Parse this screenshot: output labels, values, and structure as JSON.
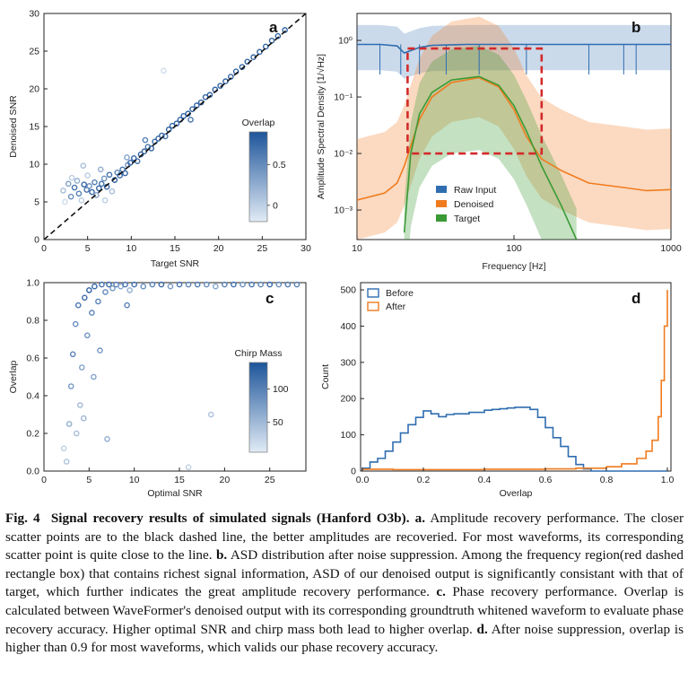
{
  "caption": {
    "fig_label": "Fig. 4",
    "title": "Signal recovery results of simulated signals (Hanford O3b).",
    "a_label": "a.",
    "a_text": "Amplitude recovery performance. The closer scatter points are to the black dashed line, the better amplitudes are recoveried. For most waveforms, its corresponding scatter point is quite close to the line.",
    "b_label": "b.",
    "b_text": "ASD distribution after noise suppression. Among the frequency region(red dashed rectangle box) that contains richest signal information, ASD of our denoised output is significantly consistant with that of target, which further indicates the great amplitude recovery performance.",
    "c_label": "c.",
    "c_text": "Phase recovery performance. Overlap is calculated between WaveFormer's denoised output with its corresponding groundtruth whitened waveform to evaluate phase recovery accuracy. Higher optimal SNR and chirp mass both lead to higher overlap.",
    "d_label": "d.",
    "d_text": "After noise suppression, overlap is higher than 0.9 for most waveforms, which valids our phase recovery accuracy."
  },
  "chart_data": [
    {
      "panel": "a",
      "type": "scatter",
      "title": "",
      "xlabel": "Target SNR",
      "ylabel": "Denoised SNR",
      "xlim": [
        0,
        30
      ],
      "ylim": [
        0,
        30
      ],
      "xticks": [
        0,
        5,
        10,
        15,
        20,
        25,
        30
      ],
      "yticks": [
        0,
        5,
        10,
        15,
        20,
        25,
        30
      ],
      "reference_line": "y = x (black dashed)",
      "colorbar": {
        "label": "Overlap",
        "ticks": [
          0.0,
          0.5
        ],
        "range": [
          -0.2,
          0.9
        ]
      },
      "points": [
        [
          2.2,
          6.5,
          0.3
        ],
        [
          2.8,
          7.4,
          0.5
        ],
        [
          3.1,
          5.7,
          0.6
        ],
        [
          3.5,
          6.9,
          0.8
        ],
        [
          3.8,
          7.8,
          0.4
        ],
        [
          4.0,
          6.1,
          0.7
        ],
        [
          4.3,
          5.2,
          0.2
        ],
        [
          4.6,
          7.3,
          0.9
        ],
        [
          4.9,
          6.6,
          0.8
        ],
        [
          5.2,
          7.1,
          0.6
        ],
        [
          5.5,
          6.3,
          0.9
        ],
        [
          5.8,
          7.6,
          0.7
        ],
        [
          6.0,
          5.9,
          0.5
        ],
        [
          6.3,
          6.8,
          0.9
        ],
        [
          6.6,
          7.4,
          0.8
        ],
        [
          6.9,
          8.1,
          0.6
        ],
        [
          7.2,
          7.0,
          0.9
        ],
        [
          7.5,
          8.6,
          0.8
        ],
        [
          7.8,
          6.4,
          0.3
        ],
        [
          8.1,
          7.9,
          0.9
        ],
        [
          8.4,
          8.9,
          0.7
        ],
        [
          8.7,
          8.5,
          0.9
        ],
        [
          9.0,
          9.3,
          0.8
        ],
        [
          9.3,
          8.8,
          0.9
        ],
        [
          9.6,
          9.9,
          0.6
        ],
        [
          9.9,
          10.2,
          0.9
        ],
        [
          10.3,
          10.8,
          0.9
        ],
        [
          10.7,
          10.4,
          0.8
        ],
        [
          11.1,
          11.3,
          0.9
        ],
        [
          11.5,
          11.7,
          0.9
        ],
        [
          11.9,
          12.3,
          0.8
        ],
        [
          12.3,
          12.1,
          0.9
        ],
        [
          12.7,
          13.0,
          0.9
        ],
        [
          13.1,
          13.4,
          0.9
        ],
        [
          13.5,
          13.8,
          0.9
        ],
        [
          13.9,
          13.7,
          0.8
        ],
        [
          14.3,
          14.6,
          0.9
        ],
        [
          14.7,
          15.1,
          0.9
        ],
        [
          15.2,
          15.4,
          0.9
        ],
        [
          15.6,
          15.9,
          0.9
        ],
        [
          16.0,
          16.4,
          0.9
        ],
        [
          16.5,
          16.7,
          0.9
        ],
        [
          17.0,
          17.3,
          0.9
        ],
        [
          17.5,
          17.8,
          0.9
        ],
        [
          18.0,
          18.2,
          0.9
        ],
        [
          18.5,
          18.9,
          0.9
        ],
        [
          19.0,
          19.2,
          0.9
        ],
        [
          19.6,
          19.9,
          0.9
        ],
        [
          20.2,
          20.4,
          0.9
        ],
        [
          20.8,
          21.0,
          0.9
        ],
        [
          21.4,
          21.6,
          0.9
        ],
        [
          22.0,
          22.3,
          0.9
        ],
        [
          22.7,
          22.9,
          0.9
        ],
        [
          23.3,
          23.6,
          0.9
        ],
        [
          24.0,
          24.2,
          0.9
        ],
        [
          24.7,
          24.9,
          0.9
        ],
        [
          25.4,
          25.6,
          0.9
        ],
        [
          26.1,
          26.4,
          0.9
        ],
        [
          26.8,
          27.0,
          0.9
        ],
        [
          27.6,
          27.8,
          0.9
        ],
        [
          13.7,
          22.4,
          0.1
        ],
        [
          4.5,
          9.8,
          0.3
        ],
        [
          3.2,
          8.2,
          0.2
        ],
        [
          2.4,
          5.0,
          0.1
        ],
        [
          6.5,
          9.3,
          0.4
        ],
        [
          5.0,
          8.5,
          0.2
        ],
        [
          7.0,
          5.2,
          0.2
        ],
        [
          9.5,
          10.9,
          0.5
        ],
        [
          11.6,
          13.2,
          0.7
        ],
        [
          16.8,
          15.9,
          0.8
        ]
      ]
    },
    {
      "panel": "b",
      "type": "line",
      "title": "",
      "xlabel": "Frequency [Hz]",
      "ylabel": "Amplitude Spectral Density [1/√Hz]",
      "xscale": "log",
      "yscale": "log",
      "xlim": [
        10,
        1000
      ],
      "ylim": [
        0.0003,
        3
      ],
      "xtick_labels": [
        "10",
        "100",
        "1000"
      ],
      "ytick_labels": [
        "10⁻³",
        "10⁻²",
        "10⁻¹",
        "10⁰"
      ],
      "ytick_values": [
        0.001,
        0.01,
        0.1,
        1
      ],
      "legend": [
        "Raw Input",
        "Denoised",
        "Target"
      ],
      "legend_position": "lower-center",
      "highlight_box": {
        "x": [
          21,
          150
        ],
        "y": [
          0.01,
          0.72
        ],
        "style": "red dashed"
      },
      "series": [
        {
          "name": "Raw Input",
          "color": "#2f6db0",
          "x": [
            10,
            14,
            18,
            20,
            25,
            30,
            50,
            100,
            200,
            400,
            700,
            1000
          ],
          "y": [
            0.85,
            0.85,
            0.8,
            0.6,
            0.75,
            0.82,
            0.85,
            0.85,
            0.85,
            0.85,
            0.85,
            0.85
          ]
        },
        {
          "name": "Denoised",
          "color": "#f07b1f",
          "x": [
            10,
            15,
            18,
            20,
            25,
            30,
            40,
            60,
            80,
            100,
            120,
            150,
            200,
            300,
            500,
            700,
            1000
          ],
          "y": [
            0.0015,
            0.002,
            0.003,
            0.006,
            0.04,
            0.1,
            0.18,
            0.22,
            0.15,
            0.06,
            0.02,
            0.008,
            0.005,
            0.003,
            0.0025,
            0.0022,
            0.0023
          ]
        },
        {
          "name": "Target",
          "color": "#3a9a35",
          "x": [
            20,
            22,
            25,
            30,
            40,
            60,
            80,
            100,
            120,
            150,
            200,
            250
          ],
          "y": [
            0.0004,
            0.01,
            0.05,
            0.12,
            0.2,
            0.23,
            0.16,
            0.07,
            0.025,
            0.006,
            0.0012,
            0.0003
          ]
        }
      ]
    },
    {
      "panel": "c",
      "type": "scatter",
      "title": "",
      "xlabel": "Optimal SNR",
      "ylabel": "Overlap",
      "xlim": [
        0,
        29
      ],
      "ylim": [
        0,
        1
      ],
      "xticks": [
        0,
        5,
        10,
        15,
        20,
        25
      ],
      "yticks": [
        0.0,
        0.2,
        0.4,
        0.6,
        0.8,
        1.0
      ],
      "colorbar": {
        "label": "Chirp Mass",
        "ticks": [
          50,
          100
        ],
        "range": [
          5,
          140
        ]
      },
      "points": [
        [
          2.5,
          0.05,
          40
        ],
        [
          2.8,
          0.25,
          60
        ],
        [
          3.0,
          0.45,
          80
        ],
        [
          3.2,
          0.62,
          100
        ],
        [
          3.5,
          0.78,
          90
        ],
        [
          3.8,
          0.88,
          110
        ],
        [
          4.0,
          0.35,
          50
        ],
        [
          4.2,
          0.55,
          70
        ],
        [
          4.5,
          0.92,
          120
        ],
        [
          4.8,
          0.72,
          85
        ],
        [
          5.0,
          0.96,
          130
        ],
        [
          5.3,
          0.84,
          95
        ],
        [
          5.6,
          0.98,
          125
        ],
        [
          6.0,
          0.9,
          100
        ],
        [
          6.4,
          0.99,
          110
        ],
        [
          6.8,
          0.95,
          90
        ],
        [
          7.2,
          0.99,
          120
        ],
        [
          7.6,
          0.97,
          80
        ],
        [
          8.0,
          0.99,
          100
        ],
        [
          8.5,
          0.98,
          70
        ],
        [
          9.0,
          0.99,
          110
        ],
        [
          9.5,
          0.96,
          60
        ],
        [
          10.0,
          0.99,
          115
        ],
        [
          11.0,
          0.98,
          90
        ],
        [
          12.0,
          0.99,
          100
        ],
        [
          13.0,
          0.99,
          120
        ],
        [
          14.0,
          0.98,
          80
        ],
        [
          15.0,
          0.99,
          110
        ],
        [
          16.0,
          0.99,
          95
        ],
        [
          17.0,
          0.99,
          105
        ],
        [
          18.0,
          0.99,
          90
        ],
        [
          19.0,
          0.98,
          70
        ],
        [
          20.0,
          0.99,
          100
        ],
        [
          21.0,
          0.99,
          115
        ],
        [
          22.0,
          0.99,
          85
        ],
        [
          23.0,
          0.99,
          110
        ],
        [
          24.0,
          0.99,
          95
        ],
        [
          25.0,
          0.99,
          120
        ],
        [
          26.0,
          0.99,
          90
        ],
        [
          27.0,
          0.99,
          105
        ],
        [
          28.0,
          0.99,
          100
        ],
        [
          18.5,
          0.3,
          40
        ],
        [
          16.0,
          0.02,
          30
        ],
        [
          7.0,
          0.17,
          60
        ],
        [
          2.2,
          0.12,
          30
        ],
        [
          3.6,
          0.2,
          45
        ],
        [
          4.4,
          0.28,
          55
        ],
        [
          5.5,
          0.5,
          70
        ],
        [
          6.2,
          0.64,
          80
        ],
        [
          9.2,
          0.88,
          100
        ]
      ]
    },
    {
      "panel": "d",
      "type": "histogram",
      "title": "",
      "xlabel": "Overlap",
      "ylabel": "Count",
      "xlim": [
        0,
        1
      ],
      "ylim": [
        0,
        520
      ],
      "xticks": [
        0.0,
        0.2,
        0.4,
        0.6,
        0.8,
        1.0
      ],
      "yticks": [
        0,
        100,
        200,
        300,
        400,
        500
      ],
      "legend": [
        "Before",
        "After"
      ],
      "legend_position": "top-left",
      "series": [
        {
          "name": "Before",
          "color": "#2f6db0",
          "bin_edges": [
            0.0,
            0.025,
            0.05,
            0.075,
            0.1,
            0.125,
            0.15,
            0.175,
            0.2,
            0.225,
            0.25,
            0.275,
            0.3,
            0.325,
            0.35,
            0.375,
            0.4,
            0.425,
            0.45,
            0.475,
            0.5,
            0.525,
            0.55,
            0.575,
            0.6,
            0.625,
            0.65,
            0.675,
            0.7,
            0.725,
            0.75,
            1.0
          ],
          "counts": [
            8,
            25,
            35,
            55,
            80,
            105,
            128,
            148,
            166,
            158,
            150,
            156,
            158,
            158,
            162,
            162,
            168,
            170,
            172,
            174,
            176,
            176,
            170,
            148,
            120,
            92,
            68,
            40,
            18,
            6,
            0
          ]
        },
        {
          "name": "After",
          "color": "#f07b1f",
          "x": [
            0.0,
            0.1,
            0.2,
            0.3,
            0.4,
            0.5,
            0.6,
            0.7,
            0.8,
            0.85,
            0.9,
            0.93,
            0.95,
            0.97,
            0.98,
            0.99,
            1.0
          ],
          "counts": [
            5,
            4,
            4,
            4,
            5,
            5,
            6,
            8,
            12,
            20,
            35,
            55,
            85,
            150,
            250,
            400,
            500
          ]
        }
      ]
    }
  ]
}
